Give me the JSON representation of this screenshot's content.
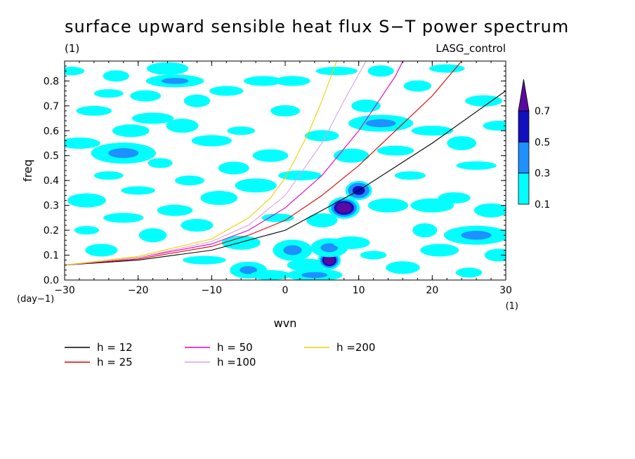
{
  "chart_data": {
    "type": "heatmap",
    "title": "surface upward sensible heat flux S−T power spectrum",
    "subtitle_left": "(1)",
    "subtitle_right": "LASG_control",
    "xlabel": "wvn",
    "ylabel": "freq",
    "x_unit_label": "(1)",
    "y_unit_label": "(day−1)",
    "xlim": [
      -30,
      30
    ],
    "ylim": [
      0,
      0.88
    ],
    "x_ticks": [
      "−30",
      "−20",
      "−10",
      "0",
      "10",
      "20",
      "30"
    ],
    "x_tick_values": [
      -30,
      -20,
      -10,
      0,
      10,
      20,
      30
    ],
    "y_ticks": [
      "0.0",
      "0.1",
      "0.2",
      "0.3",
      "0.4",
      "0.5",
      "0.6",
      "0.7",
      "0.8"
    ],
    "y_tick_values": [
      0,
      0.1,
      0.2,
      0.3,
      0.4,
      0.5,
      0.6,
      0.7,
      0.8
    ],
    "colorbar": {
      "levels": [
        "0.1",
        "0.3",
        "0.5",
        "0.7"
      ],
      "level_values": [
        0.1,
        0.3,
        0.5,
        0.7
      ],
      "colors": [
        "#00ffff",
        "#1e90ff",
        "#1010c0",
        "#5a0aa0"
      ],
      "extend": "max"
    },
    "dispersion_curves": [
      {
        "name": "h = 12",
        "h": 12,
        "color": "#000000",
        "points": [
          [
            -30,
            0.06
          ],
          [
            -20,
            0.08
          ],
          [
            -10,
            0.12
          ],
          [
            0,
            0.2
          ],
          [
            10,
            0.36
          ],
          [
            20,
            0.55
          ],
          [
            30,
            0.76
          ]
        ]
      },
      {
        "name": "h = 25",
        "h": 25,
        "color": "#e00000",
        "points": [
          [
            -30,
            0.06
          ],
          [
            -20,
            0.085
          ],
          [
            -10,
            0.135
          ],
          [
            -5,
            0.18
          ],
          [
            0,
            0.24
          ],
          [
            5,
            0.34
          ],
          [
            10,
            0.46
          ],
          [
            15,
            0.6
          ],
          [
            20,
            0.74
          ],
          [
            24,
            0.88
          ]
        ]
      },
      {
        "name": "h = 50",
        "h": 50,
        "color": "#e000c0",
        "points": [
          [
            -30,
            0.06
          ],
          [
            -20,
            0.09
          ],
          [
            -10,
            0.145
          ],
          [
            -5,
            0.2
          ],
          [
            0,
            0.29
          ],
          [
            5,
            0.42
          ],
          [
            10,
            0.6
          ],
          [
            15,
            0.82
          ],
          [
            16,
            0.88
          ]
        ]
      },
      {
        "name": "h =100",
        "h": 100,
        "color": "#d8a0e8",
        "points": [
          [
            -30,
            0.06
          ],
          [
            -20,
            0.09
          ],
          [
            -10,
            0.155
          ],
          [
            -5,
            0.22
          ],
          [
            0,
            0.34
          ],
          [
            5,
            0.55
          ],
          [
            8,
            0.72
          ],
          [
            11,
            0.88
          ]
        ]
      },
      {
        "name": "h =200",
        "h": 200,
        "color": "#f0d000",
        "points": [
          [
            -30,
            0.06
          ],
          [
            -20,
            0.095
          ],
          [
            -10,
            0.165
          ],
          [
            -5,
            0.25
          ],
          [
            -2,
            0.33
          ],
          [
            0,
            0.41
          ],
          [
            3,
            0.58
          ],
          [
            5,
            0.72
          ],
          [
            7,
            0.88
          ]
        ]
      }
    ],
    "contour_blobs": [
      {
        "x": -29,
        "y": 0.84,
        "level": 0.1
      },
      {
        "x": -28,
        "y": 0.55,
        "level": 0.1
      },
      {
        "x": -27,
        "y": 0.32,
        "level": 0.1
      },
      {
        "x": -26,
        "y": 0.68,
        "level": 0.1
      },
      {
        "x": -25,
        "y": 0.12,
        "level": 0.1
      },
      {
        "x": -24,
        "y": 0.42,
        "level": 0.1
      },
      {
        "x": -23,
        "y": 0.82,
        "level": 0.1
      },
      {
        "x": -22,
        "y": 0.51,
        "level": 0.3
      },
      {
        "x": -22,
        "y": 0.25,
        "level": 0.1
      },
      {
        "x": -21,
        "y": 0.6,
        "level": 0.1
      },
      {
        "x": -20,
        "y": 0.36,
        "level": 0.1
      },
      {
        "x": -19,
        "y": 0.74,
        "level": 0.1
      },
      {
        "x": -18,
        "y": 0.18,
        "level": 0.1
      },
      {
        "x": -17,
        "y": 0.47,
        "level": 0.1
      },
      {
        "x": -16,
        "y": 0.85,
        "level": 0.1
      },
      {
        "x": -15,
        "y": 0.8,
        "level": 0.3
      },
      {
        "x": -15,
        "y": 0.28,
        "level": 0.1
      },
      {
        "x": -14,
        "y": 0.62,
        "level": 0.1
      },
      {
        "x": -13,
        "y": 0.4,
        "level": 0.1
      },
      {
        "x": -12,
        "y": 0.72,
        "level": 0.1
      },
      {
        "x": -11,
        "y": 0.08,
        "level": 0.1
      },
      {
        "x": -10,
        "y": 0.56,
        "level": 0.1
      },
      {
        "x": -9,
        "y": 0.33,
        "level": 0.1
      },
      {
        "x": -8,
        "y": 0.76,
        "level": 0.1
      },
      {
        "x": -7,
        "y": 0.45,
        "level": 0.1
      },
      {
        "x": -6,
        "y": 0.6,
        "level": 0.1
      },
      {
        "x": -5,
        "y": 0.04,
        "level": 0.3
      },
      {
        "x": -4,
        "y": 0.38,
        "level": 0.1
      },
      {
        "x": -3,
        "y": 0.8,
        "level": 0.1
      },
      {
        "x": -2,
        "y": 0.5,
        "level": 0.1
      },
      {
        "x": -1,
        "y": 0.25,
        "level": 0.1
      },
      {
        "x": 0,
        "y": 0.68,
        "level": 0.1
      },
      {
        "x": 1,
        "y": 0.12,
        "level": 0.3
      },
      {
        "x": 2,
        "y": 0.42,
        "level": 0.1
      },
      {
        "x": 3,
        "y": 0.06,
        "level": 0.1
      },
      {
        "x": 4,
        "y": 0.02,
        "level": 0.3
      },
      {
        "x": 5,
        "y": 0.58,
        "level": 0.1
      },
      {
        "x": 5,
        "y": 0.24,
        "level": 0.1
      },
      {
        "x": 6,
        "y": 0.08,
        "level": 0.7
      },
      {
        "x": 6,
        "y": 0.13,
        "level": 0.3
      },
      {
        "x": 7,
        "y": 0.84,
        "level": 0.1
      },
      {
        "x": 8,
        "y": 0.29,
        "level": 0.7
      },
      {
        "x": 9,
        "y": 0.5,
        "level": 0.1
      },
      {
        "x": 10,
        "y": 0.36,
        "level": 0.5
      },
      {
        "x": 11,
        "y": 0.7,
        "level": 0.1
      },
      {
        "x": 12,
        "y": 0.1,
        "level": 0.1
      },
      {
        "x": 13,
        "y": 0.63,
        "level": 0.3
      },
      {
        "x": 14,
        "y": 0.3,
        "level": 0.1
      },
      {
        "x": 15,
        "y": 0.52,
        "level": 0.1
      },
      {
        "x": 16,
        "y": 0.05,
        "level": 0.1
      },
      {
        "x": 17,
        "y": 0.42,
        "level": 0.1
      },
      {
        "x": 18,
        "y": 0.78,
        "level": 0.1
      },
      {
        "x": 19,
        "y": 0.2,
        "level": 0.1
      },
      {
        "x": 20,
        "y": 0.6,
        "level": 0.1
      },
      {
        "x": 21,
        "y": 0.12,
        "level": 0.1
      },
      {
        "x": 22,
        "y": 0.85,
        "level": 0.1
      },
      {
        "x": 23,
        "y": 0.33,
        "level": 0.1
      },
      {
        "x": 24,
        "y": 0.55,
        "level": 0.1
      },
      {
        "x": 25,
        "y": 0.03,
        "level": 0.1
      },
      {
        "x": 26,
        "y": 0.18,
        "level": 0.3
      },
      {
        "x": 26,
        "y": 0.46,
        "level": 0.1
      },
      {
        "x": 27,
        "y": 0.72,
        "level": 0.1
      },
      {
        "x": 28,
        "y": 0.28,
        "level": 0.1
      },
      {
        "x": 29,
        "y": 0.62,
        "level": 0.1
      },
      {
        "x": 29,
        "y": 0.1,
        "level": 0.1
      },
      {
        "x": -27,
        "y": 0.2,
        "level": 0.1
      },
      {
        "x": -18,
        "y": 0.65,
        "level": 0.1
      },
      {
        "x": -6,
        "y": 0.15,
        "level": 0.1
      },
      {
        "x": 1,
        "y": 0.8,
        "level": 0.1
      },
      {
        "x": -12,
        "y": 0.22,
        "level": 0.1
      },
      {
        "x": -24,
        "y": 0.75,
        "level": 0.1
      },
      {
        "x": 13,
        "y": 0.84,
        "level": 0.1
      },
      {
        "x": 20,
        "y": 0.3,
        "level": 0.1
      },
      {
        "x": -2,
        "y": 0.02,
        "level": 0.1
      },
      {
        "x": 9,
        "y": 0.15,
        "level": 0.1
      }
    ]
  }
}
